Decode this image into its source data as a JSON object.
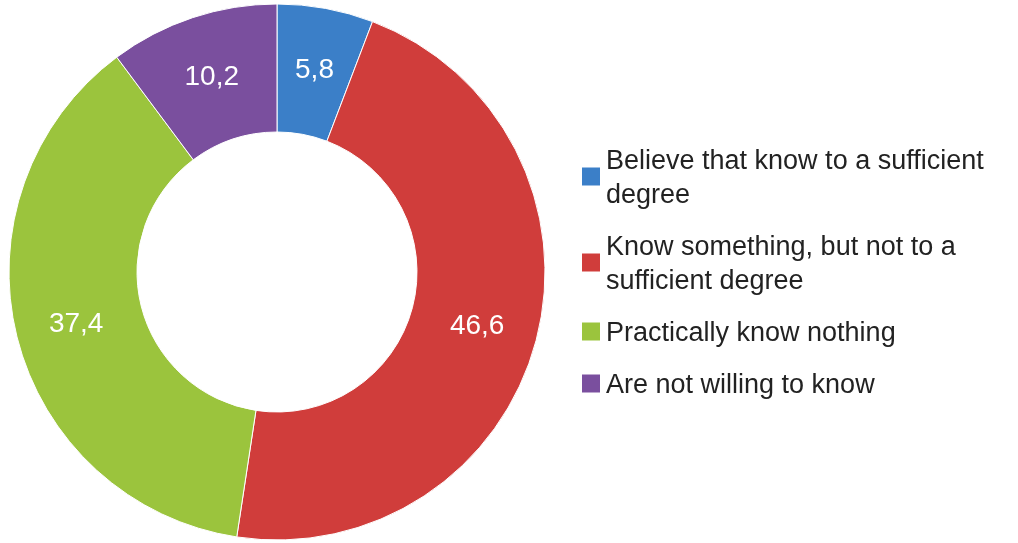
{
  "chart_data": {
    "type": "donut",
    "categories": [
      "Believe that know to a sufficient degree",
      "Know something, but not to a sufficient degree",
      "Practically know nothing",
      "Are not willing to know"
    ],
    "values": [
      5.8,
      46.6,
      37.4,
      10.2
    ],
    "value_labels": [
      "5,8",
      "46,6",
      "37,4",
      "10,2"
    ],
    "colors": [
      "#3b7fc8",
      "#d03d3b",
      "#9bc43d",
      "#7a4f9e"
    ],
    "legend": "right"
  }
}
